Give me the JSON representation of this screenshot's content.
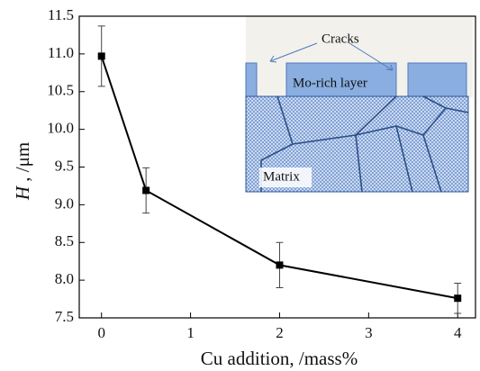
{
  "chart_data": {
    "type": "line",
    "x": [
      0,
      0.5,
      2,
      4
    ],
    "values": [
      10.97,
      9.19,
      8.2,
      7.76
    ],
    "errors": [
      0.4,
      0.3,
      0.3,
      0.2
    ],
    "color": "#000000",
    "xlim": [
      -0.25,
      4.2
    ],
    "xticks": [
      0,
      1,
      2,
      3,
      4
    ],
    "ylim": [
      7.5,
      11.5
    ],
    "yticks": [
      {
        "value": 7.5,
        "label": "7.5"
      },
      {
        "value": 8,
        "label": "8.0"
      },
      {
        "value": 8.5,
        "label": "8.5"
      },
      {
        "value": 9,
        "label": "9.0"
      },
      {
        "value": 9.5,
        "label": "9.5"
      },
      {
        "value": 10,
        "label": "10.0"
      },
      {
        "value": 10.5,
        "label": "10.5"
      },
      {
        "value": 11,
        "label": "11.0"
      },
      {
        "value": 11.5,
        "label": "11.5"
      }
    ],
    "xlabel": "Cu addition, /mass%",
    "ylabel_symbol": "H",
    "ylabel": " , /μm",
    "annotations": [
      "Cracks",
      "Mo-rich layer",
      "Matrix"
    ]
  }
}
